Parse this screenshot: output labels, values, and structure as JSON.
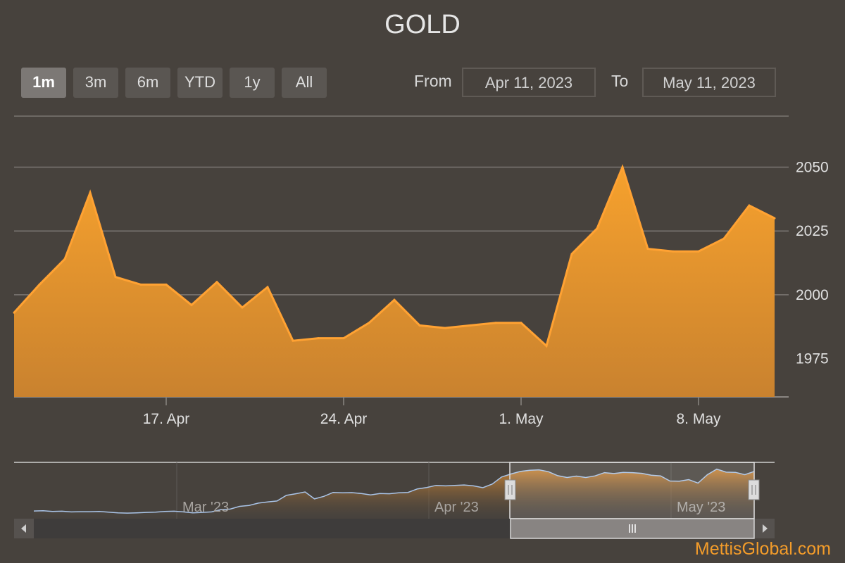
{
  "title": "GOLD",
  "range_selector": {
    "buttons": [
      "1m",
      "3m",
      "6m",
      "YTD",
      "1y",
      "All"
    ],
    "active": "1m",
    "from_label": "From",
    "from_value": "Apr 11, 2023",
    "to_label": "To",
    "to_value": "May 11, 2023"
  },
  "credit": "MettisGlobal.com",
  "colors": {
    "background": "#47423d",
    "area_top": "#f6a12d",
    "area_bottom": "#c9822f",
    "line": "#ffa233",
    "navigator_line": "#a9c4e8"
  },
  "chart_data": {
    "type": "area",
    "title": "GOLD",
    "x_tick_labels": [
      "17. Apr",
      "24. Apr",
      "1. May",
      "8. May"
    ],
    "x_tick_dates": [
      "2023-04-17",
      "2023-04-24",
      "2023-05-01",
      "2023-05-08"
    ],
    "y_tick_labels": [
      "1975",
      "2000",
      "2025",
      "2050"
    ],
    "ylim": [
      1975,
      2050
    ],
    "grid": true,
    "series": [
      {
        "x": [
          "2023-04-11",
          "2023-04-12",
          "2023-04-13",
          "2023-04-14",
          "2023-04-15",
          "2023-04-16",
          "2023-04-17",
          "2023-04-18",
          "2023-04-19",
          "2023-04-20",
          "2023-04-21",
          "2023-04-22",
          "2023-04-23",
          "2023-04-24",
          "2023-04-25",
          "2023-04-26",
          "2023-04-27",
          "2023-04-28",
          "2023-04-29",
          "2023-04-30",
          "2023-05-01",
          "2023-05-02",
          "2023-05-03",
          "2023-05-04",
          "2023-05-05",
          "2023-05-06",
          "2023-05-07",
          "2023-05-08",
          "2023-05-09",
          "2023-05-10",
          "2023-05-11"
        ],
        "values": [
          1993,
          2004,
          2014,
          2040,
          2007,
          2004,
          2004,
          1996,
          2005,
          1995,
          2003,
          1982,
          1983,
          1983,
          1989,
          1998,
          1988,
          1987,
          1988,
          1989,
          1989,
          1980,
          2016,
          2026,
          2050,
          2018,
          2017,
          2017,
          2022,
          2035,
          2030
        ]
      }
    ],
    "navigator": {
      "x_tick_labels": [
        "Mar '23",
        "Apr '23",
        "May '23"
      ],
      "selected_from": "Apr 11, 2023",
      "selected_to": "May 11, 2023",
      "values": [
        1860,
        1861,
        1858,
        1859,
        1856,
        1857,
        1857,
        1858,
        1855,
        1852,
        1851,
        1852,
        1854,
        1855,
        1858,
        1859,
        1856,
        1852,
        1854,
        1856,
        1866,
        1868,
        1880,
        1884,
        1894,
        1899,
        1903,
        1927,
        1934,
        1942,
        1912,
        1923,
        1940,
        1938,
        1939,
        1935,
        1929,
        1935,
        1934,
        1938,
        1940,
        1955,
        1961,
        1970,
        1968,
        1970,
        1972,
        1968,
        1960,
        1976,
        2006,
        2019,
        2030,
        2035,
        2037,
        2029,
        2012,
        2004,
        2010,
        2004,
        2011,
        2025,
        2021,
        2026,
        2025,
        2022,
        2014,
        2011,
        1989,
        1988,
        1995,
        1980,
        2016,
        2040,
        2027,
        2026,
        2016,
        2030
      ]
    }
  }
}
